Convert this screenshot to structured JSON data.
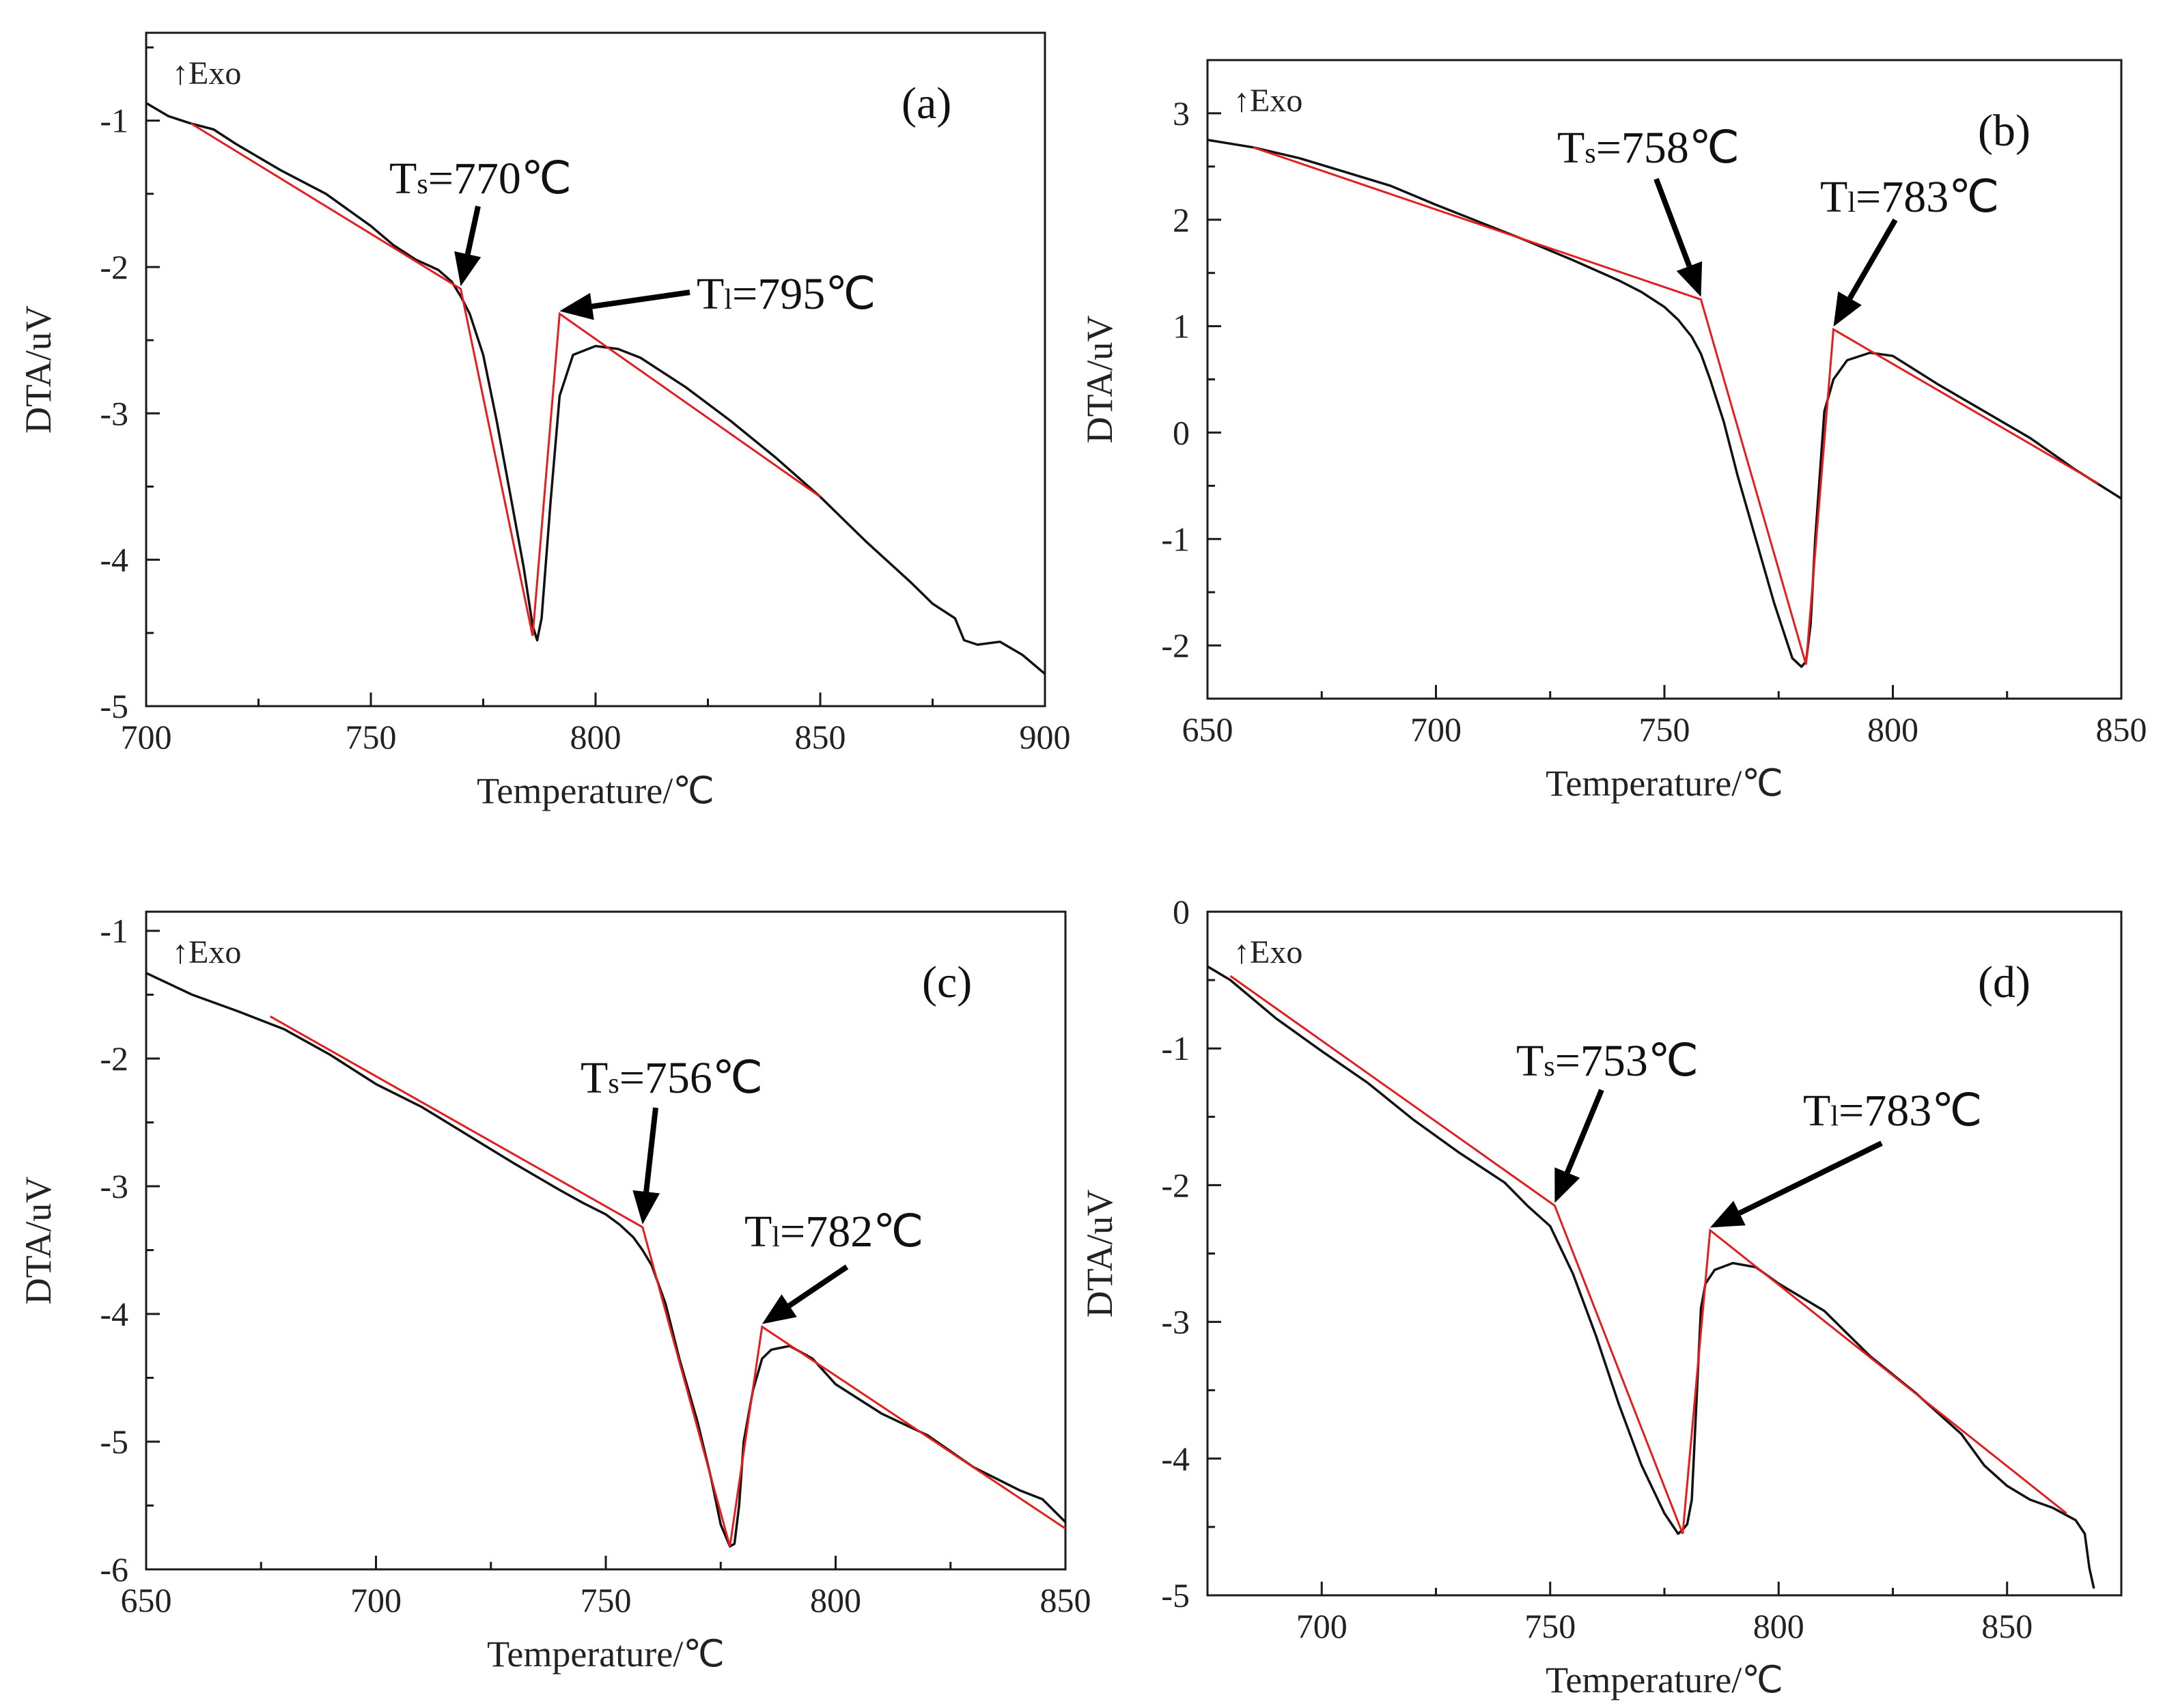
{
  "chart_data": [
    {
      "type": "line",
      "panel_label": "(a)",
      "exo_label": "↑Exo",
      "xlabel": "Temperature/℃",
      "ylabel": "DTA/uV",
      "xlim": [
        700,
        900
      ],
      "ylim": [
        -5,
        -0.4
      ],
      "xticks": [
        700,
        750,
        800,
        850,
        900
      ],
      "yticks": [
        -5,
        -4,
        -3,
        -2,
        -1
      ],
      "annotations": [
        {
          "main": "T",
          "sub": "s",
          "rest": "=770℃",
          "x": 770,
          "y": -2.15
        },
        {
          "main": "T",
          "sub": "l",
          "rest": "=795℃",
          "x": 792,
          "y": -2.32
        }
      ],
      "series": [
        {
          "style": "measured",
          "x": [
            700,
            705,
            710,
            715,
            720,
            730,
            740,
            750,
            755,
            760,
            765,
            768,
            770,
            772,
            775,
            778,
            781,
            784,
            786,
            787,
            788,
            790,
            792,
            795,
            800,
            805,
            810,
            820,
            830,
            840,
            850,
            860,
            870,
            875,
            880,
            882,
            885,
            890,
            895,
            900
          ],
          "y": [
            -0.88,
            -0.97,
            -1.02,
            -1.06,
            -1.16,
            -1.34,
            -1.5,
            -1.72,
            -1.85,
            -1.95,
            -2.02,
            -2.1,
            -2.2,
            -2.32,
            -2.6,
            -3.05,
            -3.55,
            -4.05,
            -4.45,
            -4.55,
            -4.4,
            -3.6,
            -2.88,
            -2.6,
            -2.54,
            -2.56,
            -2.62,
            -2.82,
            -3.05,
            -3.3,
            -3.57,
            -3.87,
            -4.15,
            -4.3,
            -4.4,
            -4.55,
            -4.58,
            -4.56,
            -4.65,
            -4.78
          ]
        },
        {
          "style": "tangent",
          "x": [
            710,
            770,
            786,
            792,
            850
          ],
          "y": [
            -1.02,
            -2.15,
            -4.52,
            -2.32,
            -3.57
          ]
        }
      ]
    },
    {
      "type": "line",
      "panel_label": "(b)",
      "exo_label": "↑Exo",
      "xlabel": "Temperature/℃",
      "ylabel": "DTA/uV",
      "xlim": [
        650,
        850
      ],
      "ylim": [
        -2.5,
        3.5
      ],
      "xticks": [
        650,
        700,
        750,
        800,
        850
      ],
      "yticks": [
        -2,
        -1,
        0,
        1,
        2,
        3
      ],
      "annotations": [
        {
          "main": "T",
          "sub": "s",
          "rest": "=758℃",
          "x": 758,
          "y": 1.25
        },
        {
          "main": "T",
          "sub": "l",
          "rest": "=783℃",
          "x": 787,
          "y": 0.97
        }
      ],
      "series": [
        {
          "style": "measured",
          "x": [
            650,
            660,
            670,
            680,
            690,
            700,
            710,
            720,
            730,
            740,
            745,
            750,
            753,
            756,
            758,
            760,
            763,
            766,
            770,
            774,
            778,
            780,
            781,
            782,
            783,
            785,
            787,
            790,
            795,
            800,
            810,
            820,
            830,
            840,
            850
          ],
          "y": [
            2.75,
            2.68,
            2.58,
            2.45,
            2.32,
            2.14,
            1.97,
            1.8,
            1.62,
            1.43,
            1.32,
            1.18,
            1.06,
            0.9,
            0.74,
            0.5,
            0.1,
            -0.4,
            -1.0,
            -1.6,
            -2.12,
            -2.2,
            -2.15,
            -1.8,
            -1.0,
            0.2,
            0.5,
            0.68,
            0.75,
            0.72,
            0.45,
            0.2,
            -0.05,
            -0.35,
            -0.62
          ]
        },
        {
          "style": "tangent",
          "x": [
            660,
            758,
            781,
            787,
            845
          ],
          "y": [
            2.68,
            1.25,
            -2.18,
            0.97,
            -0.48
          ]
        }
      ]
    },
    {
      "type": "line",
      "panel_label": "(c)",
      "exo_label": "↑Exo",
      "xlabel": "Temperature/℃",
      "ylabel": "DTA/uV",
      "xlim": [
        650,
        850
      ],
      "ylim": [
        -6,
        -0.85
      ],
      "xticks": [
        650,
        700,
        750,
        800,
        850
      ],
      "yticks": [
        -6,
        -5,
        -4,
        -3,
        -2,
        -1
      ],
      "annotations": [
        {
          "main": "T",
          "sub": "s",
          "rest": "=756℃",
          "x": 758,
          "y": -3.32
        },
        {
          "main": "T",
          "sub": "l",
          "rest": "=782℃",
          "x": 784,
          "y": -4.1
        }
      ],
      "series": [
        {
          "style": "measured",
          "x": [
            650,
            660,
            670,
            680,
            690,
            700,
            710,
            720,
            730,
            740,
            745,
            750,
            753,
            756,
            758,
            760,
            763,
            766,
            770,
            773,
            775,
            777,
            778,
            779,
            780,
            782,
            784,
            786,
            790,
            795,
            800,
            810,
            820,
            830,
            840,
            845,
            850
          ],
          "y": [
            -1.33,
            -1.5,
            -1.63,
            -1.77,
            -1.97,
            -2.2,
            -2.38,
            -2.6,
            -2.82,
            -3.03,
            -3.13,
            -3.22,
            -3.3,
            -3.4,
            -3.5,
            -3.62,
            -3.92,
            -4.35,
            -4.85,
            -5.3,
            -5.65,
            -5.82,
            -5.8,
            -5.5,
            -5.0,
            -4.6,
            -4.35,
            -4.28,
            -4.25,
            -4.35,
            -4.55,
            -4.78,
            -4.95,
            -5.2,
            -5.38,
            -5.45,
            -5.63
          ]
        },
        {
          "style": "tangent",
          "x": [
            677,
            758,
            777,
            784,
            850
          ],
          "y": [
            -1.67,
            -3.32,
            -5.82,
            -4.1,
            -5.68
          ]
        }
      ]
    },
    {
      "type": "line",
      "panel_label": "(d)",
      "exo_label": "↑Exo",
      "xlabel": "Temperature/℃",
      "ylabel": "DTA/uV",
      "xlim": [
        675,
        875
      ],
      "ylim": [
        -5,
        0
      ],
      "xticks": [
        700,
        750,
        800,
        850
      ],
      "yticks": [
        -5,
        -4,
        -3,
        -2,
        -1,
        0
      ],
      "annotations": [
        {
          "main": "T",
          "sub": "s",
          "rest": "=753℃",
          "x": 751,
          "y": -2.15
        },
        {
          "main": "T",
          "sub": "l",
          "rest": "=783℃",
          "x": 785,
          "y": -2.33
        }
      ],
      "series": [
        {
          "style": "measured",
          "x": [
            675,
            680,
            690,
            700,
            710,
            720,
            730,
            740,
            745,
            750,
            755,
            760,
            765,
            770,
            775,
            778,
            779,
            780,
            781,
            782,
            783,
            784,
            786,
            790,
            795,
            800,
            810,
            820,
            830,
            840,
            845,
            850,
            855,
            860,
            865,
            867,
            868,
            869
          ],
          "y": [
            -0.4,
            -0.5,
            -0.78,
            -1.02,
            -1.25,
            -1.52,
            -1.76,
            -1.98,
            -2.15,
            -2.3,
            -2.65,
            -3.1,
            -3.6,
            -4.05,
            -4.4,
            -4.55,
            -4.52,
            -4.48,
            -4.3,
            -3.6,
            -2.9,
            -2.72,
            -2.62,
            -2.57,
            -2.6,
            -2.72,
            -2.92,
            -3.25,
            -3.52,
            -3.82,
            -4.05,
            -4.2,
            -4.3,
            -4.36,
            -4.45,
            -4.55,
            -4.8,
            -4.95
          ]
        },
        {
          "style": "tangent",
          "x": [
            680,
            751,
            779,
            785,
            863
          ],
          "y": [
            -0.47,
            -2.15,
            -4.55,
            -2.33,
            -4.4
          ]
        }
      ]
    }
  ]
}
